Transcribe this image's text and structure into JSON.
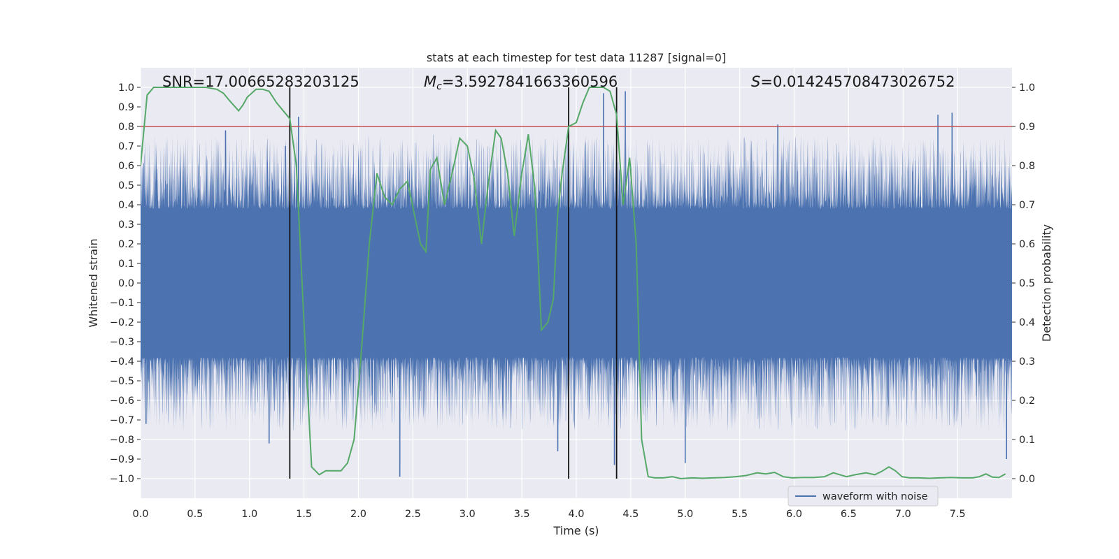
{
  "chart_data": {
    "type": "line",
    "title": "stats at each timestep for test data 11287 [signal=0]",
    "xlabel": "Time (s)",
    "ylabel": "Whitened strain",
    "y2label": "Detection probability",
    "xlim": [
      0,
      8
    ],
    "ylim": [
      -1.1,
      1.1
    ],
    "y2lim": [
      -0.05,
      1.05
    ],
    "x_ticks": [
      0.0,
      0.5,
      1.0,
      1.5,
      2.0,
      2.5,
      3.0,
      3.5,
      4.0,
      4.5,
      5.0,
      5.5,
      6.0,
      6.5,
      7.0,
      7.5
    ],
    "x_tick_labels": [
      "0.0",
      "0.5",
      "1.0",
      "1.5",
      "2.0",
      "2.5",
      "3.0",
      "3.5",
      "4.0",
      "4.5",
      "5.0",
      "5.5",
      "6.0",
      "6.5",
      "7.0",
      "7.5"
    ],
    "y_ticks": [
      1.0,
      0.9,
      0.8,
      0.7,
      0.6,
      0.5,
      0.4,
      0.3,
      0.2,
      0.1,
      0.0,
      -0.1,
      -0.2,
      -0.3,
      -0.4,
      -0.5,
      -0.6,
      -0.7,
      -0.8,
      -0.9,
      -1.0
    ],
    "y_tick_labels": [
      "1.0",
      "0.9",
      "0.8",
      "0.7",
      "0.6",
      "0.5",
      "0.4",
      "0.3",
      "0.2",
      "0.1",
      "0.0",
      "−0.1",
      "−0.2",
      "−0.3",
      "−0.4",
      "−0.5",
      "−0.6",
      "−0.7",
      "−0.8",
      "−0.9",
      "−1.0"
    ],
    "y2_ticks": [
      1.0,
      0.9,
      0.8,
      0.7,
      0.6,
      0.5,
      0.4,
      0.3,
      0.2,
      0.1,
      0.0
    ],
    "y2_tick_labels": [
      "1.0",
      "0.9",
      "0.8",
      "0.7",
      "0.6",
      "0.5",
      "0.4",
      "0.3",
      "0.2",
      "0.1",
      "0.0"
    ],
    "annotations": {
      "snr": "SNR=17.00665283203125",
      "mc_prefix": "M",
      "mc_sub": "c",
      "mc_value": "=3.5927841663360596",
      "s_prefix": "S",
      "s_value": "=0.014245708473026752"
    },
    "threshold": {
      "value": 0.9,
      "axis": "y2",
      "color": "#c44e52"
    },
    "vlines": [
      1.37,
      3.93,
      4.37
    ],
    "legend": {
      "label": "waveform with noise",
      "placement": "lower-right"
    },
    "waveform": {
      "name": "waveform with noise",
      "color": "#4c72b0",
      "duration": 8.0,
      "samples": 4000,
      "envelope_peak": 0.97,
      "notable_peaks": [
        {
          "x": 1.45,
          "y": 0.85
        },
        {
          "x": 1.33,
          "y": 0.7
        },
        {
          "x": 0.78,
          "y": 0.78
        },
        {
          "x": 4.25,
          "y": 0.97
        },
        {
          "x": 4.45,
          "y": 0.98
        },
        {
          "x": 7.32,
          "y": 0.86
        },
        {
          "x": 7.45,
          "y": 0.87
        },
        {
          "x": 5.85,
          "y": 0.81
        },
        {
          "x": 2.38,
          "y": -0.99
        },
        {
          "x": 5.0,
          "y": -0.92
        },
        {
          "x": 1.18,
          "y": -0.82
        },
        {
          "x": 7.95,
          "y": -0.9
        },
        {
          "x": 4.35,
          "y": -0.93
        },
        {
          "x": 3.83,
          "y": -0.86
        },
        {
          "x": 0.05,
          "y": -0.72
        }
      ]
    },
    "detection_probability": {
      "name": "detection probability",
      "color": "#55a868",
      "x": [
        0.0,
        0.06,
        0.12,
        0.2,
        0.3,
        0.4,
        0.5,
        0.6,
        0.7,
        0.76,
        0.82,
        0.9,
        0.94,
        0.98,
        1.06,
        1.12,
        1.18,
        1.25,
        1.37,
        1.43,
        1.5,
        1.57,
        1.64,
        1.7,
        1.77,
        1.84,
        1.9,
        1.96,
        2.02,
        2.1,
        2.17,
        2.24,
        2.31,
        2.38,
        2.45,
        2.51,
        2.57,
        2.62,
        2.66,
        2.72,
        2.79,
        2.86,
        2.93,
        3.0,
        3.06,
        3.13,
        3.19,
        3.26,
        3.31,
        3.37,
        3.43,
        3.5,
        3.56,
        3.62,
        3.68,
        3.74,
        3.79,
        3.83,
        3.87,
        3.93,
        4.0,
        4.06,
        4.12,
        4.18,
        4.25,
        4.31,
        4.37,
        4.43,
        4.49,
        4.55,
        4.6,
        4.66,
        4.72,
        4.8,
        4.88,
        4.96,
        5.06,
        5.16,
        5.26,
        5.36,
        5.46,
        5.56,
        5.66,
        5.74,
        5.82,
        5.9,
        5.98,
        6.08,
        6.18,
        6.28,
        6.36,
        6.42,
        6.48,
        6.56,
        6.66,
        6.74,
        6.8,
        6.87,
        6.93,
        6.99,
        7.06,
        7.14,
        7.24,
        7.34,
        7.44,
        7.54,
        7.64,
        7.7,
        7.76,
        7.82,
        7.88,
        7.94
      ],
      "y": [
        0.8,
        0.98,
        1.0,
        1.0,
        1.0,
        1.0,
        1.0,
        1.0,
        0.995,
        0.985,
        0.965,
        0.94,
        0.955,
        0.975,
        0.995,
        0.995,
        0.99,
        0.96,
        0.92,
        0.8,
        0.4,
        0.03,
        0.01,
        0.02,
        0.02,
        0.02,
        0.04,
        0.1,
        0.3,
        0.6,
        0.78,
        0.72,
        0.7,
        0.74,
        0.76,
        0.68,
        0.6,
        0.58,
        0.79,
        0.82,
        0.7,
        0.78,
        0.87,
        0.85,
        0.77,
        0.6,
        0.75,
        0.89,
        0.87,
        0.78,
        0.62,
        0.78,
        0.88,
        0.74,
        0.38,
        0.4,
        0.46,
        0.68,
        0.78,
        0.9,
        0.91,
        0.96,
        1.0,
        1.0,
        1.0,
        0.99,
        0.93,
        0.7,
        0.82,
        0.6,
        0.1,
        0.005,
        0.002,
        0.002,
        0.005,
        0.0,
        0.002,
        0.001,
        0.002,
        0.003,
        0.005,
        0.008,
        0.015,
        0.012,
        0.016,
        0.005,
        0.002,
        0.003,
        0.003,
        0.005,
        0.015,
        0.01,
        0.005,
        0.01,
        0.015,
        0.01,
        0.018,
        0.03,
        0.02,
        0.005,
        0.002,
        0.002,
        0.001,
        0.002,
        0.003,
        0.002,
        0.002,
        0.005,
        0.012,
        0.004,
        0.003,
        0.012
      ]
    }
  }
}
